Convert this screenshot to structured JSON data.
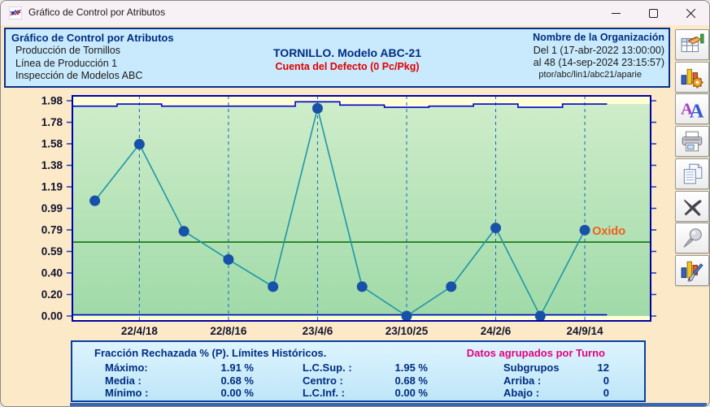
{
  "window": {
    "title": "Gráfico de Control por Atributos"
  },
  "header": {
    "panel_title": "Gráfico de Control por Atributos",
    "line1": "Producción de Tornillos",
    "line2": "Línea de Producción 1",
    "line3": "Inspección de Modelos ABC",
    "center_title": "TORNILLO. Modelo ABC-21",
    "center_subtitle": "Cuenta del Defecto (0 Pc/Pkg)",
    "org_name": "Nombre de la Organización",
    "range_from": "Del 1 (17-abr-2022  13:00:00)",
    "range_to": "al 48 (14-sep-2024  23:15:57)",
    "path": "ptor/abc/lin1/abc21/aparie"
  },
  "chart_data": {
    "type": "line",
    "title": "Fracción Rechazada % (P)",
    "ylim": [
      0,
      1.98
    ],
    "y_tick_labels": [
      "1.98",
      "1.78",
      "1.58",
      "1.38",
      "1.19",
      "0.99",
      "0.79",
      "0.59",
      "0.40",
      "0.20",
      "0.00"
    ],
    "x_axis_labels": [
      {
        "text": "22/4/18",
        "point": 2
      },
      {
        "text": "22/8/16",
        "point": 4
      },
      {
        "text": "23/4/6",
        "point": 6
      },
      {
        "text": "23/10/25",
        "point": 8
      },
      {
        "text": "24/2/6",
        "point": 10
      },
      {
        "text": "24/9/14",
        "point": 12
      }
    ],
    "grid_at_points": [
      2,
      4,
      6,
      8,
      10,
      12
    ],
    "series": [
      {
        "name": "Fracción Rechazada % (P)",
        "values": [
          1.06,
          1.58,
          0.78,
          0.52,
          0.27,
          1.91,
          0.27,
          0.0,
          0.27,
          0.81,
          0.0,
          0.79
        ]
      }
    ],
    "center_line": 0.68,
    "lcl": 0.0,
    "ucl_steps": [
      1.93,
      1.95,
      1.93,
      1.93,
      1.93,
      1.97,
      1.94,
      1.92,
      1.93,
      1.95,
      1.92,
      1.95
    ],
    "annotations": [
      {
        "point": 12,
        "text": "Oxido"
      }
    ],
    "subgroups": 12,
    "legend": "none",
    "colors": {
      "band": "#FFFFD6",
      "plot_top": "#CFEDCA",
      "plot_bottom": "#A0DAA8",
      "frame": "#0000A8",
      "limit_line": "#0000D0",
      "center_line": "#006B00",
      "grid_line": "#1663C7",
      "series_line": "#1F97A8",
      "point_fill": "#1851A8",
      "tick": "#2040C0",
      "axis_text": "#14142E",
      "annotation": "#F0601A"
    }
  },
  "stats": {
    "title": "Fracción Rechazada % (P). Límites Históricos.",
    "group_note": "Datos agrupados por Turno",
    "rows": [
      {
        "c1l": "Máximo:",
        "c1v": "1.91 %",
        "c2l": "L.C.Sup. :",
        "c2v": "1.95 %",
        "c3l": "Subgrupos",
        "c3v": "12"
      },
      {
        "c1l": "Media :",
        "c1v": "0.68 %",
        "c2l": "Centro :",
        "c2v": "0.68 %",
        "c3l": "Arriba :",
        "c3v": "0"
      },
      {
        "c1l": "Mínimo :",
        "c1v": "0.00 %",
        "c2l": "L.C.Inf. :",
        "c2v": "0.00 %",
        "c3l": "Abajo :",
        "c3v": "0"
      }
    ]
  },
  "toolbar": {
    "buttons": [
      {
        "name": "data-table-button",
        "icon": "table-hand-icon"
      },
      {
        "name": "chart-settings-button",
        "icon": "chart-gear-icon"
      },
      {
        "name": "font-button",
        "icon": "fonts-icon"
      },
      {
        "name": "print-button",
        "icon": "printer-icon"
      },
      {
        "name": "copy-button",
        "icon": "documents-icon"
      },
      {
        "name": "delete-button",
        "icon": "x-icon"
      },
      {
        "name": "pin-button",
        "icon": "pushpin-icon"
      },
      {
        "name": "chart-style-button",
        "icon": "chart-brush-icon"
      }
    ]
  }
}
